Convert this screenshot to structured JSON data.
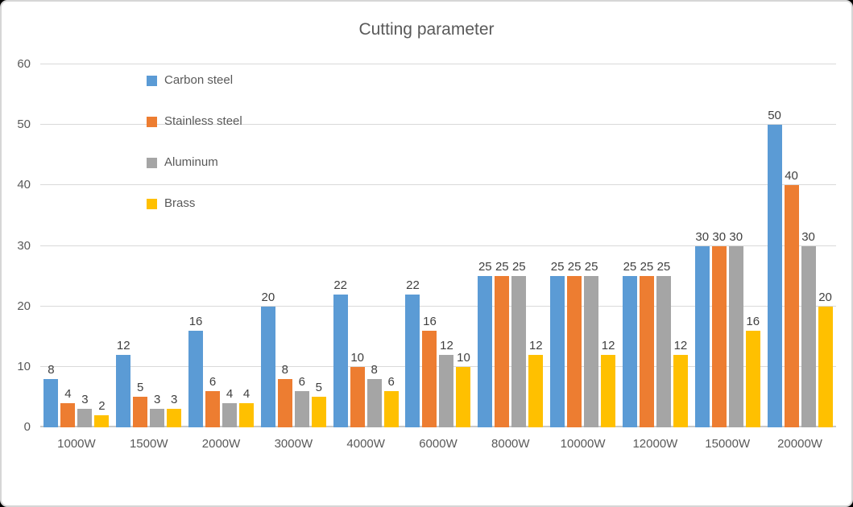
{
  "window": {
    "background": "#ffffff",
    "border_color": "#d6d6d6",
    "outside_color": "#000000"
  },
  "chart_data": {
    "type": "bar",
    "title": "Cutting parameter",
    "title_color": "#595959",
    "categories": [
      "1000W",
      "1500W",
      "2000W",
      "3000W",
      "4000W",
      "6000W",
      "8000W",
      "10000W",
      "12000W",
      "15000W",
      "20000W"
    ],
    "series": [
      {
        "name": "Carbon steel",
        "color": "#5B9BD5",
        "values": [
          8,
          12,
          16,
          20,
          22,
          22,
          25,
          25,
          25,
          30,
          50
        ]
      },
      {
        "name": "Stainless steel",
        "color": "#ED7D31",
        "values": [
          4,
          5,
          6,
          8,
          10,
          16,
          25,
          25,
          25,
          30,
          40
        ]
      },
      {
        "name": "Aluminum",
        "color": "#A5A5A5",
        "values": [
          3,
          3,
          4,
          6,
          8,
          12,
          25,
          25,
          25,
          30,
          30
        ]
      },
      {
        "name": "Brass",
        "color": "#FFC000",
        "values": [
          2,
          3,
          4,
          5,
          6,
          10,
          12,
          12,
          12,
          16,
          20
        ]
      }
    ],
    "xlabel": "",
    "ylabel": "",
    "ylim": [
      0,
      60
    ],
    "yticks": [
      0,
      10,
      20,
      30,
      40,
      50,
      60
    ],
    "grid": true,
    "gridline_color": "#d9d9d9",
    "axis_line_color": "#c9c9c9",
    "axis_label_color": "#595959",
    "data_labels": true,
    "data_label_color": "#404040",
    "legend_position": "upper-left-vertical"
  }
}
